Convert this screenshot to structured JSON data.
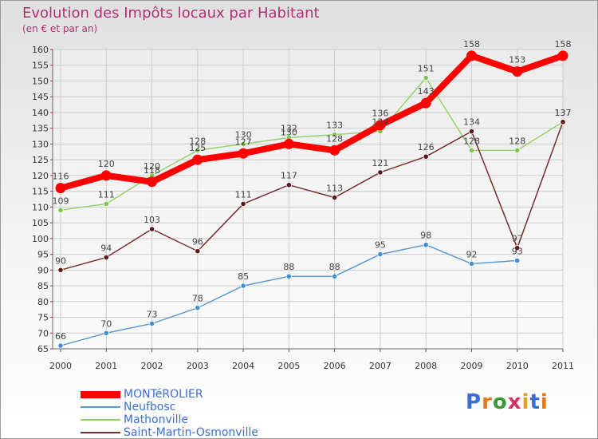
{
  "header": {
    "title": "Evolution des Impôts locaux par Habitant",
    "subtitle": "(en € et par an)"
  },
  "logo": {
    "text": "Proxiti",
    "letter_colors": [
      "#3a6fd0",
      "#e07a1a",
      "#3a9a3a",
      "#d83060",
      "#e0a020",
      "#3a6fd0",
      "#e07a1a"
    ]
  },
  "chart_data": {
    "type": "line",
    "title": "Evolution des Impôts locaux par Habitant",
    "subtitle": "(en € et par an)",
    "x": [
      "2000",
      "2001",
      "2002",
      "2003",
      "2004",
      "2005",
      "2006",
      "2007",
      "2008",
      "2009",
      "2010",
      "2011"
    ],
    "ylim": [
      65,
      160
    ],
    "yticks": [
      65,
      70,
      75,
      80,
      85,
      90,
      95,
      100,
      105,
      110,
      115,
      120,
      125,
      130,
      135,
      140,
      145,
      150,
      155,
      160
    ],
    "grid": true,
    "legend_position": "bottom-left",
    "series": [
      {
        "name": "Neufbosc",
        "color": "#5b9bd5",
        "marker": "#3f8fd8",
        "width": "thin",
        "values": [
          66,
          70,
          73,
          78,
          85,
          88,
          88,
          95,
          98,
          92,
          93,
          null
        ],
        "labels": [
          "66",
          "70",
          "73",
          "78",
          "85",
          "88",
          "88",
          "95",
          "98",
          "92",
          "93",
          null
        ]
      },
      {
        "name": "Mathonville",
        "color": "#92d36e",
        "marker": "#7cc44a",
        "width": "thin",
        "values": [
          109,
          111,
          120,
          128,
          130,
          132,
          133,
          134,
          151,
          128,
          128,
          137
        ],
        "labels": [
          "109",
          "111",
          "120",
          "128",
          "130",
          "132",
          "133",
          "134",
          "151",
          "128",
          "128",
          "137"
        ]
      },
      {
        "name": "Saint-Martin-Osmonville",
        "color": "#7a2d2d",
        "marker": "#5a1a1a",
        "width": "thin",
        "values": [
          90,
          94,
          103,
          96,
          111,
          117,
          113,
          121,
          126,
          134,
          97,
          137
        ],
        "labels": [
          "90",
          "94",
          "103",
          "96",
          "111",
          "117",
          "113",
          "121",
          "126",
          "134",
          "97",
          "137"
        ]
      },
      {
        "name": "MONTéROLIER",
        "color": "#ff0000",
        "marker": "#ff0000",
        "width": "thick",
        "values": [
          116,
          120,
          118,
          125,
          127,
          130,
          128,
          136,
          143,
          158,
          153,
          158
        ],
        "labels": [
          "116",
          "120",
          "118",
          "125",
          "127",
          "130",
          "128",
          "136",
          "143",
          "158",
          "153",
          "158"
        ]
      }
    ],
    "legend": [
      {
        "name": "MONTéROLIER",
        "color": "#ff0000",
        "width": "thick"
      },
      {
        "name": "Neufbosc",
        "color": "#5b9bd5",
        "width": "thin"
      },
      {
        "name": "Mathonville",
        "color": "#92d36e",
        "width": "thin"
      },
      {
        "name": "Saint-Martin-Osmonville",
        "color": "#7a2d2d",
        "width": "thin"
      }
    ]
  }
}
